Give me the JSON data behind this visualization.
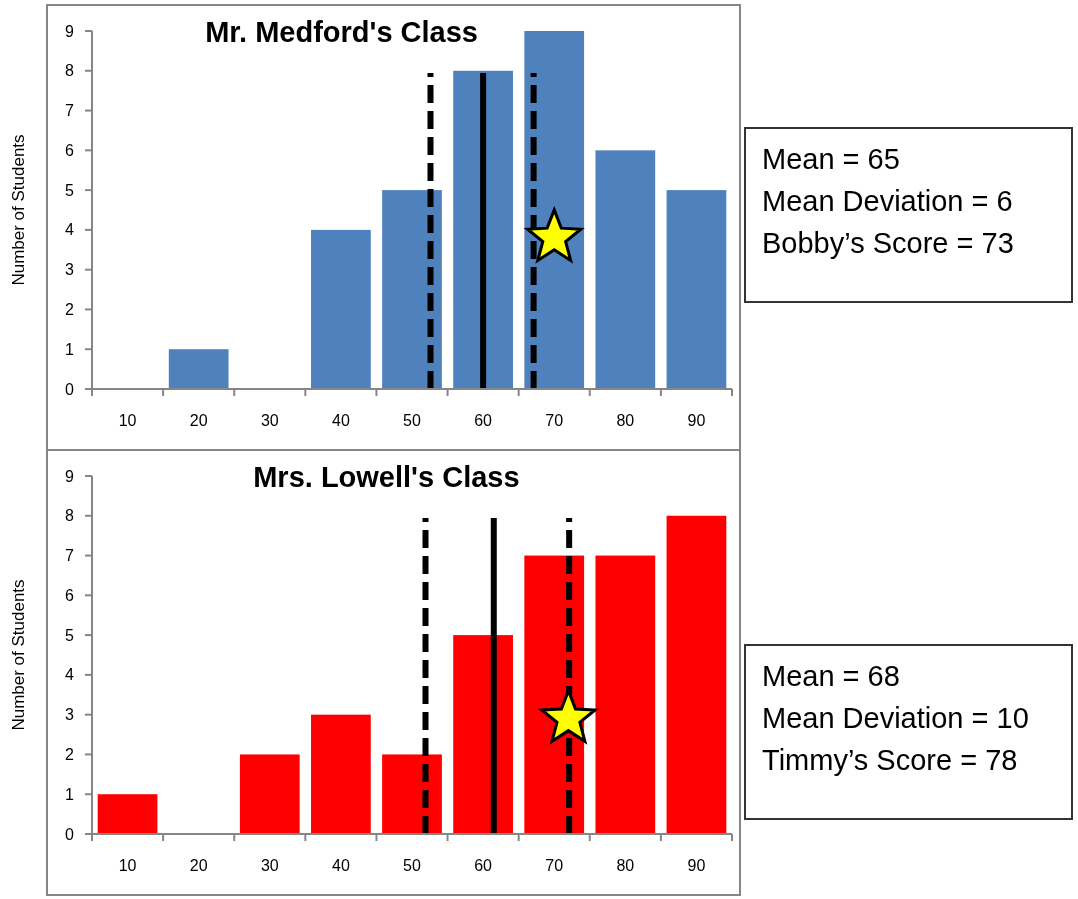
{
  "chart_data": [
    {
      "type": "bar",
      "title": "Mr. Medford's Class",
      "ylabel": "Number of Students",
      "x": [
        10,
        20,
        30,
        40,
        50,
        60,
        70,
        80,
        90
      ],
      "xlim": [
        5,
        95
      ],
      "xticks": [
        {
          "value": 5,
          "label": null
        },
        10,
        {
          "value": 15,
          "label": null
        },
        20,
        {
          "value": 25,
          "label": null
        },
        30,
        {
          "value": 35,
          "label": null
        },
        40,
        {
          "value": 45,
          "label": null
        },
        50,
        {
          "value": 55,
          "label": null
        },
        60,
        {
          "value": 65,
          "label": null
        },
        70,
        {
          "value": 75,
          "label": null
        },
        80,
        {
          "value": 85,
          "label": null
        },
        90,
        {
          "value": 95,
          "label": null
        }
      ],
      "ylim": [
        0,
        9
      ],
      "yticks": [
        0,
        1,
        2,
        3,
        4,
        5,
        6,
        7,
        8,
        9
      ],
      "series": [
        {
          "color": "#4f81bd",
          "values": [
            0,
            1,
            0,
            4,
            5,
            8,
            9,
            6,
            5
          ]
        },
        {
          "type": "scatter",
          "marker": "star",
          "color": "#ffff00",
          "x": [
            70
          ],
          "values": [
            3.8
          ]
        }
      ],
      "ref_lines": [
        {
          "axis": "x",
          "value": 52.6,
          "color": "#000000",
          "line_style": "dashed"
        },
        {
          "axis": "x",
          "value": 60,
          "color": "#000000",
          "line_style": "solid"
        },
        {
          "axis": "x",
          "value": 67.1,
          "color": "#000000",
          "line_style": "dashed"
        }
      ],
      "annotations": [
        "Mean = 65",
        "Mean Deviation = 6",
        "Bobby’s Score = 73"
      ]
    },
    {
      "type": "bar",
      "title": "Mrs. Lowell's Class",
      "ylabel": "Number of Students",
      "x": [
        10,
        20,
        30,
        40,
        50,
        60,
        70,
        80,
        90
      ],
      "xlim": [
        5,
        95
      ],
      "xticks": [
        {
          "value": 5,
          "label": null
        },
        10,
        {
          "value": 15,
          "label": null
        },
        20,
        {
          "value": 25,
          "label": null
        },
        30,
        {
          "value": 35,
          "label": null
        },
        40,
        {
          "value": 45,
          "label": null
        },
        50,
        {
          "value": 55,
          "label": null
        },
        60,
        {
          "value": 65,
          "label": null
        },
        70,
        {
          "value": 75,
          "label": null
        },
        80,
        {
          "value": 85,
          "label": null
        },
        90,
        {
          "value": 95,
          "label": null
        }
      ],
      "ylim": [
        0,
        9
      ],
      "yticks": [
        0,
        1,
        2,
        3,
        4,
        5,
        6,
        7,
        8,
        9
      ],
      "series": [
        {
          "color": "#ff0000",
          "values": [
            1,
            0,
            2,
            3,
            2,
            5,
            7,
            7,
            8
          ]
        },
        {
          "type": "scatter",
          "marker": "star",
          "color": "#ffff00",
          "x": [
            72
          ],
          "values": [
            2.9
          ]
        }
      ],
      "ref_lines": [
        {
          "axis": "x",
          "value": 51.9,
          "color": "#000000",
          "line_style": "dashed"
        },
        {
          "axis": "x",
          "value": 61.5,
          "color": "#000000",
          "line_style": "solid"
        },
        {
          "axis": "x",
          "value": 72.1,
          "color": "#000000",
          "line_style": "dashed"
        }
      ],
      "annotations": [
        "Mean = 68",
        "Mean Deviation = 10",
        "Timmy’s Score = 78"
      ]
    }
  ]
}
